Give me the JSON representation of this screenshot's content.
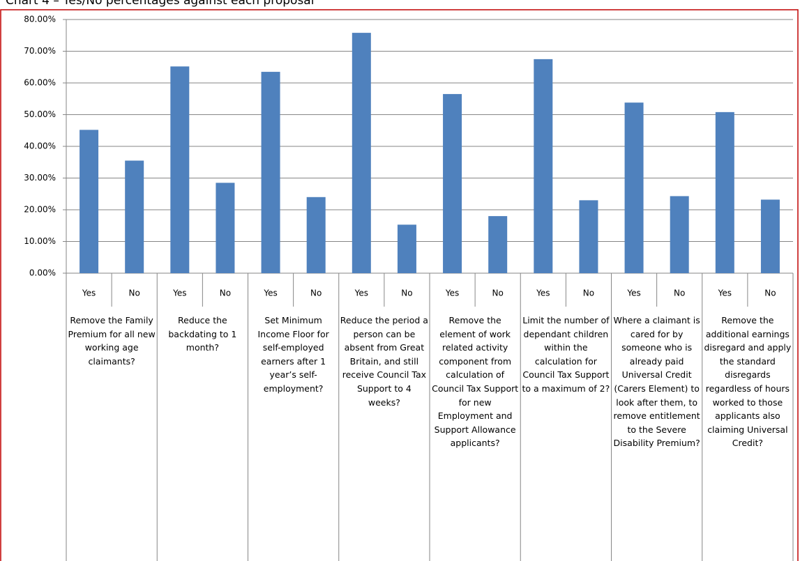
{
  "chart_data": {
    "type": "bar",
    "title": "Chart 4 – Yes/No percentages against each proposal",
    "categories": [
      "Yes",
      "No",
      "Yes",
      "No",
      "Yes",
      "No",
      "Yes",
      "No",
      "Yes",
      "No",
      "Yes",
      "No",
      "Yes",
      "No",
      "Yes",
      "No"
    ],
    "groups": [
      "Remove the Family Premium for all new working age claimants?",
      "Reduce the backdating to 1 month?",
      "Set Minimum Income Floor for self-employed earners after 1 year’s self-employment?",
      "Reduce the period a person can be absent from Great Britain, and still receive Council Tax Support to 4 weeks?",
      "Remove the element of work related activity component from calculation of Council Tax Support for new Employment and Support Allowance applicants?",
      "Limit the number of dependant children within the calculation for Council Tax Support to a maximum of 2?",
      "Where a claimant is cared for by someone who is already paid Universal Credit (Carers Element) to look after them, to remove entitlement to the Severe Disability Premium?",
      "Remove the additional earnings disregard and apply the standard disregards regardless of hours worked to those applicants also claiming Universal Credit?"
    ],
    "values": [
      45.2,
      35.5,
      65.2,
      28.5,
      63.5,
      24.0,
      75.8,
      15.3,
      56.5,
      18.0,
      67.5,
      23.0,
      53.8,
      24.3,
      50.8,
      23.2
    ],
    "color": "#4f81bd",
    "ylim": [
      0,
      80
    ],
    "yticks": [
      {
        "value": 0,
        "label": "0.00%"
      },
      {
        "value": 10,
        "label": "10.00%"
      },
      {
        "value": 20,
        "label": "20.00%"
      },
      {
        "value": 30,
        "label": "30.00%"
      },
      {
        "value": 40,
        "label": "40.00%"
      },
      {
        "value": 50,
        "label": "50.00%"
      },
      {
        "value": 60,
        "label": "60.00%"
      },
      {
        "value": 70,
        "label": "70.00%"
      },
      {
        "value": 80,
        "label": "80.00%"
      }
    ],
    "grid": true
  }
}
